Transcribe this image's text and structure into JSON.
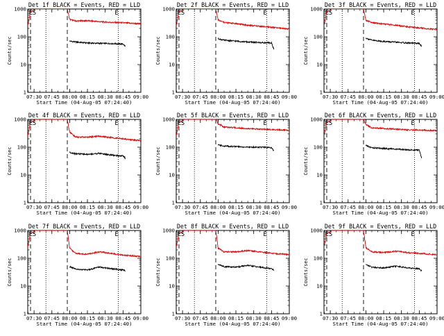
{
  "figure": {
    "colors": {
      "events": "#000000",
      "lld": "#dd0000",
      "axes": "#000000",
      "background": "#ffffff"
    },
    "grid": false
  },
  "chart_data": [
    {
      "type": "line",
      "title": "Det 1f BLACK = Events, RED = LLD",
      "xlabel": "Start Time (04-Aug-05 07:24:40)",
      "ylabel": "Counts/sec",
      "y_scale": "log",
      "ylim": [
        1,
        1000
      ],
      "xlim": [
        "07:24:40",
        "09:00:00"
      ],
      "x_ticks": [
        "07:30",
        "07:45",
        "08:00",
        "08:15",
        "08:30",
        "08:45",
        "09:00"
      ],
      "y_ticks": [
        "1",
        "10",
        "100",
        "1000"
      ],
      "markers": [
        "E",
        "S",
        "E"
      ],
      "vlines": [
        {
          "style": "dashed",
          "x": "07:27"
        },
        {
          "style": "dotted",
          "x": "07:40"
        },
        {
          "style": "dashed",
          "x": "07:58"
        },
        {
          "style": "dotted",
          "x": "08:41"
        }
      ],
      "series": [
        {
          "name": "RED = LLD",
          "color": "#dd0000",
          "x": [
            "07:24:40",
            "07:26",
            "07:27",
            "07:30",
            "07:31",
            "07:58",
            "08:00",
            "08:05",
            "08:15",
            "08:25",
            "08:35",
            "08:45",
            "08:55",
            "09:00"
          ],
          "y": [
            250,
            480,
            800,
            900,
            1000,
            1000,
            420,
            370,
            380,
            350,
            330,
            320,
            300,
            290
          ]
        },
        {
          "name": "BLACK = Events",
          "color": "#000000",
          "x": [
            "08:00",
            "08:05",
            "08:15",
            "08:25",
            "08:35",
            "08:45",
            "08:47"
          ],
          "y": [
            70,
            65,
            60,
            58,
            57,
            55,
            45
          ]
        }
      ]
    },
    {
      "type": "line",
      "title": "Det 2f BLACK = Events, RED = LLD",
      "xlabel": "Start Time (04-Aug-05 07:24:40)",
      "ylabel": "Counts/sec",
      "y_scale": "log",
      "ylim": [
        1,
        1000
      ],
      "xlim": [
        "07:24:40",
        "09:00:00"
      ],
      "x_ticks": [
        "07:30",
        "07:45",
        "08:00",
        "08:15",
        "08:30",
        "08:45",
        "09:00"
      ],
      "y_ticks": [
        "1",
        "10",
        "100",
        "1000"
      ],
      "markers": [
        "E",
        "S",
        "E"
      ],
      "vlines": [
        {
          "style": "dashed",
          "x": "07:27"
        },
        {
          "style": "dotted",
          "x": "07:40"
        },
        {
          "style": "dashed",
          "x": "07:58"
        },
        {
          "style": "dotted",
          "x": "08:41"
        }
      ],
      "series": [
        {
          "name": "RED = LLD",
          "color": "#dd0000",
          "x": [
            "07:24:40",
            "07:26",
            "07:27",
            "07:30",
            "07:31",
            "07:58",
            "08:00",
            "08:05",
            "08:15",
            "08:25",
            "08:35",
            "08:45",
            "08:55",
            "09:00"
          ],
          "y": [
            250,
            480,
            800,
            900,
            1000,
            1000,
            400,
            330,
            300,
            260,
            240,
            220,
            200,
            190
          ]
        },
        {
          "name": "BLACK = Events",
          "color": "#000000",
          "x": [
            "08:00",
            "08:05",
            "08:15",
            "08:25",
            "08:35",
            "08:45",
            "08:47"
          ],
          "y": [
            85,
            75,
            70,
            65,
            62,
            60,
            35
          ]
        }
      ]
    },
    {
      "type": "line",
      "title": "Det 3f BLACK = Events, RED = LLD",
      "xlabel": "Start Time (04-Aug-05 07:24:40)",
      "ylabel": "Counts/sec",
      "y_scale": "log",
      "ylim": [
        1,
        1000
      ],
      "xlim": [
        "07:24:40",
        "09:00:00"
      ],
      "x_ticks": [
        "07:30",
        "07:45",
        "08:00",
        "08:15",
        "08:30",
        "08:45",
        "09:00"
      ],
      "y_ticks": [
        "1",
        "10",
        "100",
        "1000"
      ],
      "markers": [
        "E",
        "S",
        "E"
      ],
      "vlines": [
        {
          "style": "dashed",
          "x": "07:27"
        },
        {
          "style": "dotted",
          "x": "07:40"
        },
        {
          "style": "dashed",
          "x": "07:58"
        },
        {
          "style": "dotted",
          "x": "08:41"
        }
      ],
      "series": [
        {
          "name": "RED = LLD",
          "color": "#dd0000",
          "x": [
            "07:24:40",
            "07:26",
            "07:27",
            "07:30",
            "07:31",
            "07:58",
            "08:00",
            "08:05",
            "08:15",
            "08:25",
            "08:35",
            "08:45",
            "08:55",
            "09:00"
          ],
          "y": [
            250,
            480,
            800,
            900,
            1000,
            1000,
            400,
            320,
            290,
            260,
            230,
            210,
            190,
            185
          ]
        },
        {
          "name": "BLACK = Events",
          "color": "#000000",
          "x": [
            "08:00",
            "08:05",
            "08:15",
            "08:25",
            "08:35",
            "08:45",
            "08:47"
          ],
          "y": [
            90,
            75,
            68,
            64,
            60,
            58,
            45
          ]
        }
      ]
    },
    {
      "type": "line",
      "title": "Det 4f BLACK = Events, RED = LLD",
      "xlabel": "Start Time (04-Aug-05 07:24:40)",
      "ylabel": "Counts/sec",
      "y_scale": "log",
      "ylim": [
        1,
        1000
      ],
      "xlim": [
        "07:24:40",
        "09:00:00"
      ],
      "x_ticks": [
        "07:30",
        "07:45",
        "08:00",
        "08:15",
        "08:30",
        "08:45",
        "09:00"
      ],
      "y_ticks": [
        "1",
        "10",
        "100",
        "1000"
      ],
      "markers": [
        "E",
        "S",
        "E"
      ],
      "vlines": [
        {
          "style": "dashed",
          "x": "07:27"
        },
        {
          "style": "dotted",
          "x": "07:40"
        },
        {
          "style": "dashed",
          "x": "07:58"
        },
        {
          "style": "dotted",
          "x": "08:41"
        }
      ],
      "series": [
        {
          "name": "RED = LLD",
          "color": "#dd0000",
          "x": [
            "07:24:40",
            "07:26",
            "07:27",
            "07:30",
            "07:31",
            "07:58",
            "08:00",
            "08:05",
            "08:15",
            "08:25",
            "08:35",
            "08:45",
            "08:55",
            "09:00"
          ],
          "y": [
            250,
            480,
            800,
            900,
            1000,
            1000,
            350,
            230,
            230,
            250,
            220,
            200,
            180,
            170
          ]
        },
        {
          "name": "BLACK = Events",
          "color": "#000000",
          "x": [
            "08:00",
            "08:05",
            "08:15",
            "08:25",
            "08:35",
            "08:45",
            "08:47"
          ],
          "y": [
            65,
            58,
            55,
            60,
            52,
            48,
            40
          ]
        }
      ]
    },
    {
      "type": "line",
      "title": "Det 5f BLACK = Events, RED = LLD",
      "xlabel": "Start Time (04-Aug-05 07:24:40)",
      "ylabel": "Counts/sec",
      "y_scale": "log",
      "ylim": [
        1,
        1000
      ],
      "xlim": [
        "07:24:40",
        "09:00:00"
      ],
      "x_ticks": [
        "07:30",
        "07:45",
        "08:00",
        "08:15",
        "08:30",
        "08:45",
        "09:00"
      ],
      "y_ticks": [
        "1",
        "10",
        "100",
        "1000"
      ],
      "markers": [
        "E",
        "S",
        "E"
      ],
      "vlines": [
        {
          "style": "dashed",
          "x": "07:27"
        },
        {
          "style": "dotted",
          "x": "07:40"
        },
        {
          "style": "dashed",
          "x": "07:58"
        },
        {
          "style": "dotted",
          "x": "08:41"
        }
      ],
      "series": [
        {
          "name": "RED = LLD",
          "color": "#dd0000",
          "x": [
            "07:24:40",
            "07:26",
            "07:27",
            "07:30",
            "07:31",
            "07:58",
            "08:00",
            "08:05",
            "08:15",
            "08:25",
            "08:35",
            "08:45",
            "08:55",
            "09:00"
          ],
          "y": [
            250,
            480,
            800,
            900,
            1000,
            1000,
            700,
            530,
            500,
            470,
            450,
            430,
            410,
            400
          ]
        },
        {
          "name": "BLACK = Events",
          "color": "#000000",
          "x": [
            "08:00",
            "08:05",
            "08:15",
            "08:25",
            "08:35",
            "08:45",
            "08:47"
          ],
          "y": [
            120,
            110,
            105,
            100,
            100,
            95,
            75
          ]
        }
      ]
    },
    {
      "type": "line",
      "title": "Det 6f BLACK = Events, RED = LLD",
      "xlabel": "Start Time (04-Aug-05 07:24:40)",
      "ylabel": "Counts/sec",
      "y_scale": "log",
      "ylim": [
        1,
        1000
      ],
      "xlim": [
        "07:24:40",
        "09:00:00"
      ],
      "x_ticks": [
        "07:30",
        "07:45",
        "08:00",
        "08:15",
        "08:30",
        "08:45",
        "09:00"
      ],
      "y_ticks": [
        "1",
        "10",
        "100",
        "1000"
      ],
      "markers": [
        "E",
        "S",
        "E"
      ],
      "vlines": [
        {
          "style": "dashed",
          "x": "07:27"
        },
        {
          "style": "dotted",
          "x": "07:40"
        },
        {
          "style": "dashed",
          "x": "07:58"
        },
        {
          "style": "dotted",
          "x": "08:41"
        }
      ],
      "series": [
        {
          "name": "RED = LLD",
          "color": "#dd0000",
          "x": [
            "07:24:40",
            "07:26",
            "07:27",
            "07:30",
            "07:31",
            "07:58",
            "08:00",
            "08:05",
            "08:15",
            "08:25",
            "08:35",
            "08:45",
            "08:55",
            "09:00"
          ],
          "y": [
            250,
            480,
            800,
            900,
            1000,
            1000,
            650,
            500,
            470,
            450,
            420,
            410,
            400,
            390
          ]
        },
        {
          "name": "BLACK = Events",
          "color": "#000000",
          "x": [
            "08:00",
            "08:05",
            "08:15",
            "08:25",
            "08:35",
            "08:45",
            "08:47"
          ],
          "y": [
            115,
            95,
            90,
            85,
            80,
            78,
            40
          ]
        }
      ]
    },
    {
      "type": "line",
      "title": "Det 7f BLACK = Events, RED = LLD",
      "xlabel": "Start Time (04-Aug-05 07:24:40)",
      "ylabel": "Counts/sec",
      "y_scale": "log",
      "ylim": [
        1,
        1000
      ],
      "xlim": [
        "07:24:40",
        "09:00:00"
      ],
      "x_ticks": [
        "07:30",
        "07:45",
        "08:00",
        "08:15",
        "08:30",
        "08:45",
        "09:00"
      ],
      "y_ticks": [
        "1",
        "10",
        "100",
        "1000"
      ],
      "markers": [
        "E",
        "S",
        "E"
      ],
      "vlines": [
        {
          "style": "dashed",
          "x": "07:27"
        },
        {
          "style": "dotted",
          "x": "07:40"
        },
        {
          "style": "dashed",
          "x": "07:58"
        },
        {
          "style": "dotted",
          "x": "08:41"
        }
      ],
      "series": [
        {
          "name": "RED = LLD",
          "color": "#dd0000",
          "x": [
            "07:24:40",
            "07:26",
            "07:27",
            "07:30",
            "07:31",
            "07:58",
            "08:00",
            "08:05",
            "08:15",
            "08:25",
            "08:35",
            "08:45",
            "08:55",
            "09:00"
          ],
          "y": [
            250,
            480,
            800,
            900,
            1000,
            1000,
            230,
            150,
            140,
            170,
            150,
            130,
            120,
            115
          ]
        },
        {
          "name": "BLACK = Events",
          "color": "#000000",
          "x": [
            "08:00",
            "08:05",
            "08:15",
            "08:25",
            "08:35",
            "08:45",
            "08:47"
          ],
          "y": [
            50,
            40,
            38,
            48,
            42,
            38,
            35
          ]
        }
      ]
    },
    {
      "type": "line",
      "title": "Det 8f BLACK = Events, RED = LLD",
      "xlabel": "Start Time (04-Aug-05 07:24:40)",
      "ylabel": "Counts/sec",
      "y_scale": "log",
      "ylim": [
        1,
        1000
      ],
      "xlim": [
        "07:24:40",
        "09:00:00"
      ],
      "x_ticks": [
        "07:30",
        "07:45",
        "08:00",
        "08:15",
        "08:30",
        "08:45",
        "09:00"
      ],
      "y_ticks": [
        "1",
        "10",
        "100",
        "1000"
      ],
      "markers": [
        "E",
        "S",
        "E"
      ],
      "vlines": [
        {
          "style": "dashed",
          "x": "07:27"
        },
        {
          "style": "dotted",
          "x": "07:40"
        },
        {
          "style": "dashed",
          "x": "07:58"
        },
        {
          "style": "dotted",
          "x": "08:41"
        }
      ],
      "series": [
        {
          "name": "RED = LLD",
          "color": "#dd0000",
          "x": [
            "07:24:40",
            "07:26",
            "07:27",
            "07:30",
            "07:31",
            "07:58",
            "08:00",
            "08:05",
            "08:15",
            "08:25",
            "08:35",
            "08:45",
            "08:55",
            "09:00"
          ],
          "y": [
            250,
            480,
            800,
            900,
            1000,
            1000,
            230,
            170,
            170,
            190,
            170,
            150,
            140,
            135
          ]
        },
        {
          "name": "BLACK = Events",
          "color": "#000000",
          "x": [
            "08:00",
            "08:05",
            "08:15",
            "08:25",
            "08:35",
            "08:45",
            "08:47"
          ],
          "y": [
            60,
            50,
            48,
            55,
            48,
            42,
            38
          ]
        }
      ]
    },
    {
      "type": "line",
      "title": "Det 9f BLACK = Events, RED = LLD",
      "xlabel": "Start Time (04-Aug-05 07:24:40)",
      "ylabel": "Counts/sec",
      "y_scale": "log",
      "ylim": [
        1,
        1000
      ],
      "xlim": [
        "07:24:40",
        "09:00:00"
      ],
      "x_ticks": [
        "07:30",
        "07:45",
        "08:00",
        "08:15",
        "08:30",
        "08:45",
        "09:00"
      ],
      "y_ticks": [
        "1",
        "10",
        "100",
        "1000"
      ],
      "markers": [
        "E",
        "S",
        "E"
      ],
      "vlines": [
        {
          "style": "dashed",
          "x": "07:27"
        },
        {
          "style": "dotted",
          "x": "07:40"
        },
        {
          "style": "dashed",
          "x": "07:58"
        },
        {
          "style": "dotted",
          "x": "08:41"
        }
      ],
      "series": [
        {
          "name": "RED = LLD",
          "color": "#dd0000",
          "x": [
            "07:24:40",
            "07:26",
            "07:27",
            "07:30",
            "07:31",
            "07:58",
            "08:00",
            "08:05",
            "08:15",
            "08:25",
            "08:35",
            "08:45",
            "08:55",
            "09:00"
          ],
          "y": [
            250,
            480,
            800,
            900,
            1000,
            1000,
            240,
            170,
            160,
            180,
            160,
            150,
            140,
            135
          ]
        },
        {
          "name": "BLACK = Events",
          "color": "#000000",
          "x": [
            "08:00",
            "08:05",
            "08:15",
            "08:25",
            "08:35",
            "08:45",
            "08:47"
          ],
          "y": [
            60,
            48,
            45,
            52,
            45,
            42,
            35
          ]
        }
      ]
    }
  ]
}
